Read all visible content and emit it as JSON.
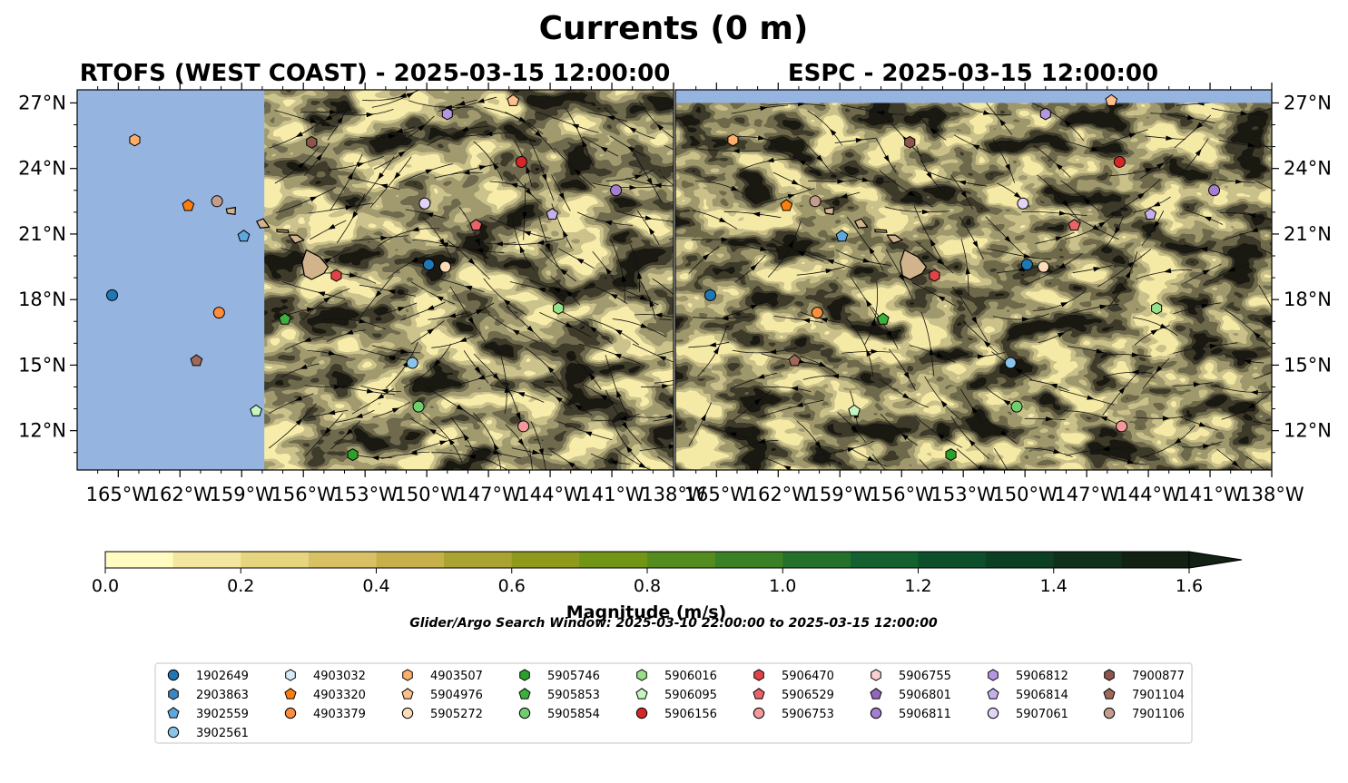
{
  "figure": {
    "suptitle": "Currents (0 m)",
    "search_window": "Glider/Argo Search Window: 2025-03-10 22:00:00 to 2025-03-15 12:00:00"
  },
  "colors": {
    "land_mask": "#95b4e0",
    "island_fill": "#d2b48c",
    "magnitude_scale": [
      "#fffbc1",
      "#f4e6a0",
      "#e7d47e",
      "#d8c164",
      "#c6b04b",
      "#aaa231",
      "#8f9a1d",
      "#729516",
      "#558c1f",
      "#3c8026",
      "#25712c",
      "#14602f",
      "#0c4f2a",
      "#0d3f24",
      "#10301c",
      "#122113"
    ]
  },
  "chart_data": [
    {
      "type": "map",
      "title": "RTOFS (WEST COAST) - 2025-03-15 12:00:00",
      "lon_range": [
        -167,
        -138
      ],
      "lat_range": [
        10.2,
        27.6
      ],
      "xticks": [
        "165°W",
        "162°W",
        "159°W",
        "156°W",
        "153°W",
        "150°W",
        "147°W",
        "144°W",
        "141°W",
        "138°W"
      ],
      "yticks": [
        "27°N",
        "24°N",
        "21°N",
        "18°N",
        "15°N",
        "12°N"
      ],
      "masked_west_of_lon": -157.9
    },
    {
      "type": "map",
      "title": "ESPC - 2025-03-15 12:00:00",
      "lon_range": [
        -167,
        -138
      ],
      "lat_range": [
        10.2,
        27.6
      ],
      "xticks": [
        "165°W",
        "162°W",
        "159°W",
        "156°W",
        "153°W",
        "150°W",
        "147°W",
        "144°W",
        "141°W",
        "138°W"
      ],
      "yticks": [
        "27°N",
        "24°N",
        "21°N",
        "18°N",
        "15°N",
        "12°N"
      ],
      "masked_north_of_lat": 27.0
    }
  ],
  "colorbar": {
    "label": "Magnitude (m/s)",
    "min": 0.0,
    "max": 1.6,
    "step": 0.1,
    "extend": "max",
    "ticks": [
      "0.0",
      "0.2",
      "0.4",
      "0.6",
      "0.8",
      "1.0",
      "1.2",
      "1.4",
      "1.6"
    ]
  },
  "legend": {
    "columns": [
      [
        {
          "id": "1902649",
          "marker": "circle",
          "color": "#1f77b4"
        },
        {
          "id": "2903863",
          "marker": "hexagon",
          "color": "#3e86c2"
        },
        {
          "id": "3902559",
          "marker": "pentagon",
          "color": "#5ea8de"
        },
        {
          "id": "3902561",
          "marker": "circle",
          "color": "#8cc3ea"
        }
      ],
      [
        {
          "id": "4903032",
          "marker": "hexagon",
          "color": "#d6ecfb"
        },
        {
          "id": "4903320",
          "marker": "pentagon",
          "color": "#ff7f0e"
        },
        {
          "id": "4903379",
          "marker": "circle",
          "color": "#fd8d3c"
        }
      ],
      [
        {
          "id": "4903507",
          "marker": "hexagon",
          "color": "#fdae6b"
        },
        {
          "id": "5904976",
          "marker": "pentagon",
          "color": "#fdc08c"
        },
        {
          "id": "5905272",
          "marker": "circle",
          "color": "#fedcba"
        }
      ],
      [
        {
          "id": "5905746",
          "marker": "hexagon",
          "color": "#2ca02c"
        },
        {
          "id": "5905853",
          "marker": "pentagon",
          "color": "#3cb03c"
        },
        {
          "id": "5905854",
          "marker": "circle",
          "color": "#6fcf6f"
        }
      ],
      [
        {
          "id": "5906016",
          "marker": "hexagon",
          "color": "#98df8a"
        },
        {
          "id": "5906095",
          "marker": "pentagon",
          "color": "#c7f5c0"
        },
        {
          "id": "5906156",
          "marker": "circle",
          "color": "#d62728"
        }
      ],
      [
        {
          "id": "5906470",
          "marker": "hexagon",
          "color": "#e04449"
        },
        {
          "id": "5906529",
          "marker": "pentagon",
          "color": "#e9636a"
        },
        {
          "id": "5906753",
          "marker": "circle",
          "color": "#f4999b"
        }
      ],
      [
        {
          "id": "5906755",
          "marker": "hexagon",
          "color": "#fcd0d0"
        },
        {
          "id": "5906801",
          "marker": "pentagon",
          "color": "#9467bd"
        },
        {
          "id": "5906811",
          "marker": "circle",
          "color": "#a57fcf"
        }
      ],
      [
        {
          "id": "5906812",
          "marker": "hexagon",
          "color": "#b596e0"
        },
        {
          "id": "5906814",
          "marker": "pentagon",
          "color": "#c5b0ea"
        },
        {
          "id": "5907061",
          "marker": "circle",
          "color": "#e2d2f6"
        }
      ],
      [
        {
          "id": "7900877",
          "marker": "hexagon",
          "color": "#8c564b"
        },
        {
          "id": "7901104",
          "marker": "pentagon",
          "color": "#a0685b"
        },
        {
          "id": "7901106",
          "marker": "circle",
          "color": "#c49c8e"
        }
      ]
    ]
  },
  "floats": [
    {
      "lon": -165.3,
      "lat": 18.2,
      "marker": "circle",
      "color": "#1f77b4",
      "id": "1902649"
    },
    {
      "lon": -149.9,
      "lat": 19.6,
      "marker": "circle",
      "color": "#1f77b4",
      "id": "1902649"
    },
    {
      "lon": -158.9,
      "lat": 20.9,
      "marker": "pentagon",
      "color": "#5ea8de",
      "id": "3902559"
    },
    {
      "lon": -150.7,
      "lat": 15.1,
      "marker": "circle",
      "color": "#8cc3ea",
      "id": "3902561"
    },
    {
      "lon": -161.6,
      "lat": 22.3,
      "marker": "pentagon",
      "color": "#ff7f0e",
      "id": "4903320"
    },
    {
      "lon": -160.1,
      "lat": 17.4,
      "marker": "circle",
      "color": "#fd8d3c",
      "id": "4903379"
    },
    {
      "lon": -164.2,
      "lat": 25.3,
      "marker": "hexagon",
      "color": "#fdae6b",
      "id": "4903507"
    },
    {
      "lon": -145.8,
      "lat": 27.1,
      "marker": "pentagon",
      "color": "#fdc08c",
      "id": "5904976"
    },
    {
      "lon": -149.1,
      "lat": 19.5,
      "marker": "circle",
      "color": "#fedcba",
      "id": "5905272"
    },
    {
      "lon": -153.6,
      "lat": 10.9,
      "marker": "hexagon",
      "color": "#2ca02c",
      "id": "5905746"
    },
    {
      "lon": -156.9,
      "lat": 17.1,
      "marker": "pentagon",
      "color": "#3cb03c",
      "id": "5905853"
    },
    {
      "lon": -150.4,
      "lat": 13.1,
      "marker": "circle",
      "color": "#6fcf6f",
      "id": "5905854"
    },
    {
      "lon": -143.6,
      "lat": 17.6,
      "marker": "hexagon",
      "color": "#98df8a",
      "id": "5906016"
    },
    {
      "lon": -158.3,
      "lat": 12.9,
      "marker": "pentagon",
      "color": "#c7f5c0",
      "id": "5906095"
    },
    {
      "lon": -145.4,
      "lat": 24.3,
      "marker": "circle",
      "color": "#d62728",
      "id": "5906156"
    },
    {
      "lon": -154.4,
      "lat": 19.1,
      "marker": "hexagon",
      "color": "#e04449",
      "id": "5906470"
    },
    {
      "lon": -147.6,
      "lat": 21.4,
      "marker": "pentagon",
      "color": "#e9636a",
      "id": "5906529"
    },
    {
      "lon": -145.3,
      "lat": 12.2,
      "marker": "circle",
      "color": "#f4999b",
      "id": "5906753"
    },
    {
      "lon": -140.8,
      "lat": 23.0,
      "marker": "circle",
      "color": "#a57fcf",
      "id": "5906811"
    },
    {
      "lon": -149.0,
      "lat": 26.5,
      "marker": "hexagon",
      "color": "#b596e0",
      "id": "5906812"
    },
    {
      "lon": -143.9,
      "lat": 21.9,
      "marker": "pentagon",
      "color": "#c5b0ea",
      "id": "5906814"
    },
    {
      "lon": -150.1,
      "lat": 22.4,
      "marker": "circle",
      "color": "#e2d2f6",
      "id": "5907061"
    },
    {
      "lon": -155.6,
      "lat": 25.2,
      "marker": "hexagon",
      "color": "#8c564b",
      "id": "7900877"
    },
    {
      "lon": -161.2,
      "lat": 15.2,
      "marker": "pentagon",
      "color": "#a0685b",
      "id": "7901104"
    },
    {
      "lon": -160.2,
      "lat": 22.5,
      "marker": "circle",
      "color": "#c49c8e",
      "id": "7901106"
    }
  ]
}
